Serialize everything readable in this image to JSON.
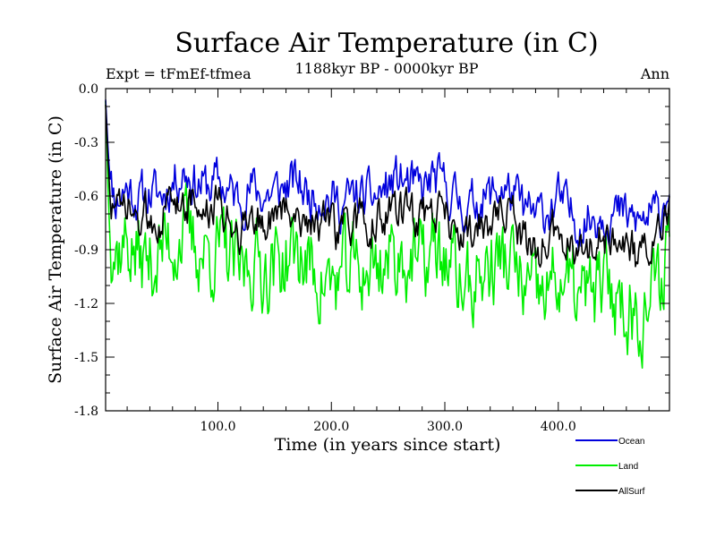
{
  "chart_data": {
    "type": "line",
    "title": "Surface Air Temperature (in C)",
    "subtitle": "1188kyr BP - 0000kyr BP",
    "left_label": "Expt = tFmEf-tfmea",
    "right_label": "Ann",
    "xlabel": "Time (in years since start)",
    "ylabel": "Surface Air Temperature (in C)",
    "xlim": [
      1,
      498
    ],
    "ylim": [
      -1.8,
      0.0
    ],
    "x_ticks": [
      100,
      200,
      300,
      400
    ],
    "x_tick_labels": [
      "100.0",
      "200.0",
      "300.0",
      "400.0"
    ],
    "y_ticks": [
      0.0,
      -0.3,
      -0.6,
      -0.9,
      -1.2,
      -1.5,
      -1.8
    ],
    "y_tick_labels": [
      "0.0",
      "-0.3",
      "-0.6",
      "-0.9",
      "-1.2",
      "-1.5",
      "-1.8"
    ],
    "legend_position": "bottom-right",
    "series": [
      {
        "name": "Ocean",
        "color": "#0000dd",
        "anchors": [
          [
            1,
            -0.05
          ],
          [
            3,
            -0.3
          ],
          [
            5,
            -0.5
          ],
          [
            10,
            -0.62
          ],
          [
            20,
            -0.55
          ],
          [
            30,
            -0.62
          ],
          [
            40,
            -0.58
          ],
          [
            50,
            -0.6
          ],
          [
            60,
            -0.52
          ],
          [
            70,
            -0.45
          ],
          [
            80,
            -0.52
          ],
          [
            90,
            -0.55
          ],
          [
            100,
            -0.52
          ],
          [
            110,
            -0.58
          ],
          [
            120,
            -0.62
          ],
          [
            130,
            -0.55
          ],
          [
            140,
            -0.6
          ],
          [
            150,
            -0.58
          ],
          [
            160,
            -0.55
          ],
          [
            170,
            -0.52
          ],
          [
            180,
            -0.6
          ],
          [
            190,
            -0.58
          ],
          [
            200,
            -0.62
          ],
          [
            210,
            -0.65
          ],
          [
            220,
            -0.6
          ],
          [
            230,
            -0.62
          ],
          [
            240,
            -0.6
          ],
          [
            250,
            -0.55
          ],
          [
            260,
            -0.5
          ],
          [
            270,
            -0.55
          ],
          [
            280,
            -0.58
          ],
          [
            290,
            -0.5
          ],
          [
            300,
            -0.55
          ],
          [
            310,
            -0.62
          ],
          [
            320,
            -0.68
          ],
          [
            330,
            -0.62
          ],
          [
            340,
            -0.6
          ],
          [
            350,
            -0.55
          ],
          [
            360,
            -0.6
          ],
          [
            370,
            -0.68
          ],
          [
            380,
            -0.72
          ],
          [
            390,
            -0.68
          ],
          [
            400,
            -0.62
          ],
          [
            410,
            -0.7
          ],
          [
            420,
            -0.75
          ],
          [
            430,
            -0.72
          ],
          [
            440,
            -0.68
          ],
          [
            450,
            -0.7
          ],
          [
            460,
            -0.72
          ],
          [
            470,
            -0.75
          ],
          [
            480,
            -0.72
          ],
          [
            490,
            -0.7
          ],
          [
            498,
            -0.5
          ]
        ],
        "amplitude": 0.11,
        "seed": 11
      },
      {
        "name": "Land",
        "color": "#00ee00",
        "anchors": [
          [
            1,
            -0.05
          ],
          [
            3,
            -0.5
          ],
          [
            5,
            -0.8
          ],
          [
            10,
            -0.9
          ],
          [
            20,
            -0.85
          ],
          [
            30,
            -0.95
          ],
          [
            40,
            -0.98
          ],
          [
            50,
            -0.9
          ],
          [
            60,
            -0.85
          ],
          [
            70,
            -0.8
          ],
          [
            80,
            -0.88
          ],
          [
            90,
            -0.92
          ],
          [
            100,
            -0.9
          ],
          [
            110,
            -0.95
          ],
          [
            120,
            -1.05
          ],
          [
            130,
            -0.95
          ],
          [
            140,
            -1.0
          ],
          [
            150,
            -0.98
          ],
          [
            160,
            -0.95
          ],
          [
            170,
            -0.92
          ],
          [
            180,
            -1.0
          ],
          [
            190,
            -1.05
          ],
          [
            200,
            -1.1
          ],
          [
            210,
            -1.05
          ],
          [
            220,
            -1.0
          ],
          [
            230,
            -1.02
          ],
          [
            240,
            -0.98
          ],
          [
            250,
            -0.95
          ],
          [
            260,
            -0.92
          ],
          [
            270,
            -0.95
          ],
          [
            280,
            -1.0
          ],
          [
            290,
            -0.9
          ],
          [
            300,
            -0.95
          ],
          [
            310,
            -1.05
          ],
          [
            320,
            -1.12
          ],
          [
            330,
            -1.05
          ],
          [
            340,
            -1.0
          ],
          [
            350,
            -0.95
          ],
          [
            360,
            -1.0
          ],
          [
            370,
            -1.12
          ],
          [
            380,
            -1.2
          ],
          [
            390,
            -1.15
          ],
          [
            400,
            -1.05
          ],
          [
            410,
            -1.12
          ],
          [
            420,
            -1.18
          ],
          [
            430,
            -1.15
          ],
          [
            440,
            -1.1
          ],
          [
            450,
            -1.15
          ],
          [
            460,
            -1.2
          ],
          [
            470,
            -1.25
          ],
          [
            480,
            -1.2
          ],
          [
            490,
            -1.1
          ],
          [
            498,
            -0.75
          ]
        ],
        "amplitude": 0.2,
        "seed": 37
      },
      {
        "name": "AllSurf",
        "color": "#000000",
        "anchors": [
          [
            1,
            -0.08
          ],
          [
            3,
            -0.4
          ],
          [
            5,
            -0.6
          ],
          [
            10,
            -0.72
          ],
          [
            20,
            -0.68
          ],
          [
            30,
            -0.75
          ],
          [
            40,
            -0.72
          ],
          [
            50,
            -0.7
          ],
          [
            60,
            -0.65
          ],
          [
            70,
            -0.6
          ],
          [
            80,
            -0.66
          ],
          [
            90,
            -0.7
          ],
          [
            100,
            -0.66
          ],
          [
            110,
            -0.72
          ],
          [
            120,
            -0.78
          ],
          [
            130,
            -0.7
          ],
          [
            140,
            -0.75
          ],
          [
            150,
            -0.72
          ],
          [
            160,
            -0.7
          ],
          [
            170,
            -0.66
          ],
          [
            180,
            -0.74
          ],
          [
            190,
            -0.74
          ],
          [
            200,
            -0.8
          ],
          [
            210,
            -0.8
          ],
          [
            220,
            -0.75
          ],
          [
            230,
            -0.77
          ],
          [
            240,
            -0.74
          ],
          [
            250,
            -0.7
          ],
          [
            260,
            -0.65
          ],
          [
            270,
            -0.7
          ],
          [
            280,
            -0.74
          ],
          [
            290,
            -0.65
          ],
          [
            300,
            -0.7
          ],
          [
            310,
            -0.78
          ],
          [
            320,
            -0.84
          ],
          [
            330,
            -0.78
          ],
          [
            340,
            -0.75
          ],
          [
            350,
            -0.7
          ],
          [
            360,
            -0.75
          ],
          [
            370,
            -0.84
          ],
          [
            380,
            -0.9
          ],
          [
            390,
            -0.86
          ],
          [
            400,
            -0.78
          ],
          [
            410,
            -0.86
          ],
          [
            420,
            -0.9
          ],
          [
            430,
            -0.88
          ],
          [
            440,
            -0.84
          ],
          [
            450,
            -0.86
          ],
          [
            460,
            -0.9
          ],
          [
            470,
            -0.94
          ],
          [
            480,
            -0.9
          ],
          [
            490,
            -0.85
          ],
          [
            498,
            -0.6
          ]
        ],
        "amplitude": 0.1,
        "seed": 73
      }
    ]
  }
}
